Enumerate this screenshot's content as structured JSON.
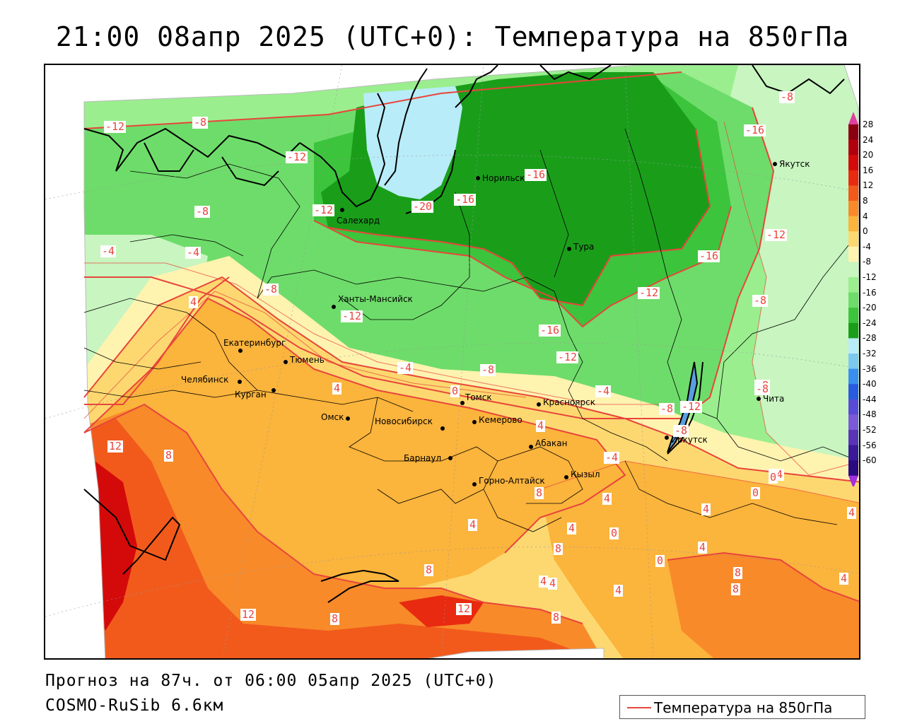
{
  "title": "21:00 08апр 2025 (UTC+0): Температура на 850гПа",
  "footer": {
    "forecast": "Прогноз на 87ч. от 06:00 05апр 2025 (UTC+0)",
    "model": "COSMO-RuSib 6.6км"
  },
  "legend": {
    "label": "Температура на 850гПа",
    "color": "#e8453c"
  },
  "colorbar": {
    "labels": [
      "28",
      "24",
      "20",
      "16",
      "12",
      "8",
      "4",
      "0",
      "-4",
      "-8",
      "-12",
      "-16",
      "-20",
      "-24",
      "-28",
      "-32",
      "-36",
      "-40",
      "-44",
      "-48",
      "-52",
      "-56",
      "-60"
    ],
    "colors": [
      "#8b0010",
      "#b0000e",
      "#d40a0a",
      "#e82a10",
      "#f25a1c",
      "#f88a2a",
      "#fbb43c",
      "#fdd870",
      "#fff3b0",
      "#c8f5c0",
      "#9aee8e",
      "#6edc6a",
      "#3cc43c",
      "#1a9e1a",
      "#b8ecf8",
      "#7cc8f0",
      "#3a8ef0",
      "#2a5ae0",
      "#5a4ad8",
      "#7a5ad8",
      "#5a34b8",
      "#3a1a98",
      "#2a0a80"
    ]
  },
  "cities": [
    {
      "name": "Норильск"
    },
    {
      "name": "Якутск"
    },
    {
      "name": "Салехард"
    },
    {
      "name": "Тура"
    },
    {
      "name": "Ханты-Мансийск"
    },
    {
      "name": "Екатеринбург"
    },
    {
      "name": "Тюмень"
    },
    {
      "name": "Челябинск"
    },
    {
      "name": "Курган"
    },
    {
      "name": "Омск"
    },
    {
      "name": "Новосибирск"
    },
    {
      "name": "Томск"
    },
    {
      "name": "Кемерово"
    },
    {
      "name": "Красноярск"
    },
    {
      "name": "Барнаул"
    },
    {
      "name": "Абакан"
    },
    {
      "name": "Горно-Алтайск"
    },
    {
      "name": "Кызыл"
    },
    {
      "name": "Иркутск"
    },
    {
      "name": "Чита"
    }
  ],
  "isotherm_labels": [
    "-12",
    "-8",
    "-12",
    "-12",
    "-16",
    "-16",
    "-20",
    "-16",
    "-8",
    "-12",
    "-8",
    "-4",
    "-4",
    "-8",
    "-12",
    "-16",
    "-12",
    "-8",
    "-16",
    "-12",
    "-4",
    "-8",
    "-8",
    "-12",
    "-4",
    "-8",
    "-4",
    "0",
    "4",
    "4",
    "4",
    "0",
    "4",
    "12",
    "8",
    "12",
    "8",
    "8",
    "12",
    "8",
    "8",
    "4",
    "4",
    "8",
    "4",
    "0",
    "0",
    "4",
    "4",
    "8",
    "8",
    "4",
    "4",
    "4",
    "4",
    "0",
    "-4",
    "-8",
    "-8"
  ]
}
